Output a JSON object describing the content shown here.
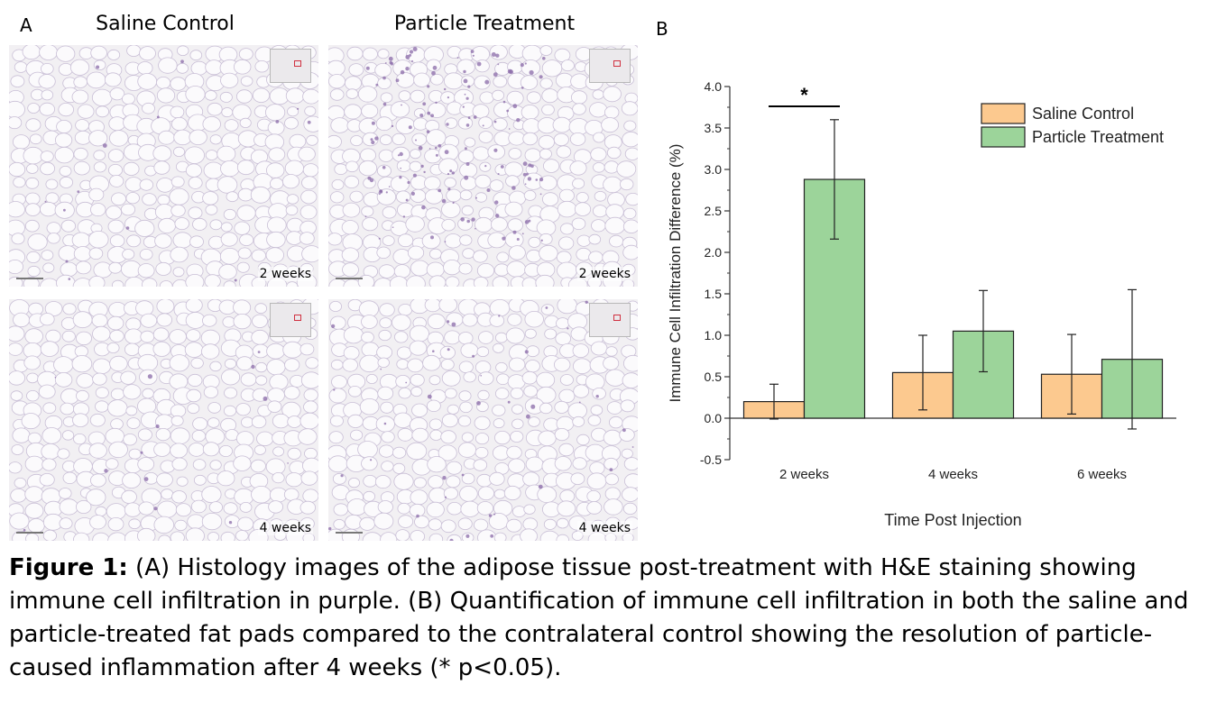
{
  "panel_a": {
    "letter": "A",
    "columns": [
      "Saline Control",
      "Particle Treatment"
    ],
    "images": [
      {
        "column": "Saline Control",
        "label": "2 weeks"
      },
      {
        "column": "Particle Treatment",
        "label": "2 weeks"
      },
      {
        "column": "Saline Control",
        "label": "4 weeks"
      },
      {
        "column": "Particle Treatment",
        "label": "4 weeks"
      }
    ],
    "stain_color": "#8a6aa8"
  },
  "panel_b": {
    "letter": "B"
  },
  "chart_data": {
    "type": "bar",
    "categories": [
      "2 weeks",
      "4 weeks",
      "6 weeks"
    ],
    "series": [
      {
        "name": "Saline Control",
        "values": [
          0.2,
          0.55,
          0.53
        ],
        "errors": [
          0.21,
          0.45,
          0.48
        ],
        "color": "#fcc98f"
      },
      {
        "name": "Particle Treatment",
        "values": [
          2.88,
          1.05,
          0.71
        ],
        "errors": [
          0.72,
          0.49,
          0.84
        ],
        "color": "#9cd49a"
      }
    ],
    "xlabel": "Time Post Injection",
    "ylabel": "Immune Cell Infiltration Difference (%)",
    "ylim": [
      -0.5,
      4.0
    ],
    "yticks": [
      "-0.5",
      "0.0",
      "0.5",
      "1.0",
      "1.5",
      "2.0",
      "2.5",
      "3.0",
      "3.5",
      "4.0"
    ],
    "significance": {
      "category": "2 weeks",
      "symbol": "*"
    },
    "legend_position": "top-right",
    "grid": false
  },
  "caption": {
    "label": "Figure 1:",
    "text": " (A) Histology images of the adipose tissue post-treatment with H&E staining showing immune cell infiltration in purple. (B) Quantification of immune cell infiltration in both the saline and particle-treated fat pads compared to the contralateral control showing the resolution of particle-caused inflammation after 4 weeks (* p<0.05)."
  }
}
